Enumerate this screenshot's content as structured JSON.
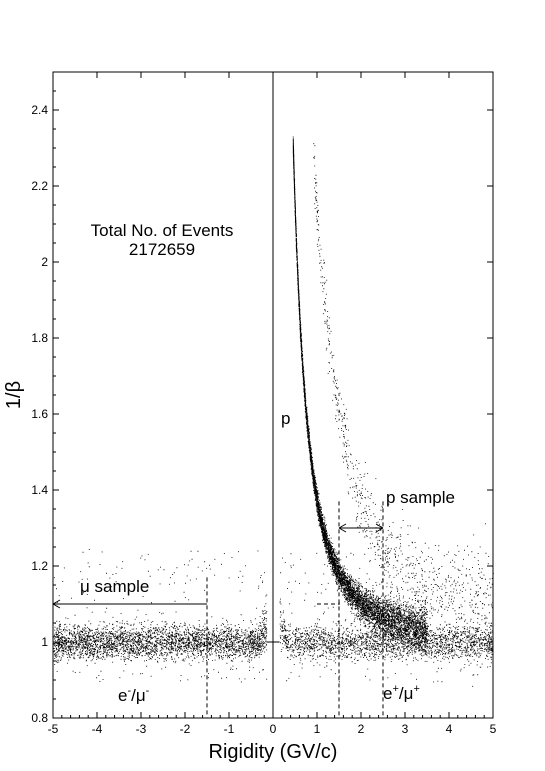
{
  "chart_data": {
    "type": "scatter",
    "title": "",
    "xlabel": "Rigidity (GV/c)",
    "ylabel": "1/β",
    "xlim": [
      -5,
      5
    ],
    "ylim": [
      0.8,
      2.5
    ],
    "xticks": [
      -5,
      -4,
      -3,
      -2,
      -1,
      0,
      1,
      2,
      3,
      4,
      5
    ],
    "yticks": [
      0.8,
      1,
      1.2,
      1.4,
      1.6,
      1.8,
      2,
      2.2,
      2.4
    ],
    "ytick_labels": [
      "0.8",
      "1",
      "1.2",
      "1.4",
      "1.6",
      "1.8",
      "2",
      "2.2",
      "2.4"
    ],
    "grid": false,
    "series": [
      {
        "name": "",
        "description_points": "dense band of events",
        "bands": [
          {
            "kind": "flat",
            "x_range": [
              -5,
              -0.15
            ],
            "y_center": 1.0,
            "y_halfwidth": 0.04
          },
          {
            "kind": "flat",
            "x_range": [
              0.15,
              5
            ],
            "y_center": 1.0,
            "y_halfwidth": 0.04
          },
          {
            "kind": "proton",
            "x_range": [
              0.45,
              3.5
            ],
            "mass": 0.938
          },
          {
            "kind": "deuteron",
            "x_range": [
              0.9,
              5
            ],
            "mass": 1.876
          }
        ]
      }
    ],
    "annotations": {
      "total_events_label": "Total No. of Events",
      "total_events_value": "2172659",
      "proton_label": "p",
      "p_sample_label": "p sample",
      "mu_sample_label": "μ sample",
      "neg_label_main": "e",
      "neg_label_sup": "-",
      "neg_label_sep": "/μ",
      "neg_label_sup2": "-",
      "pos_label_main": "e",
      "pos_label_sup": "+",
      "pos_label_sep": "/μ",
      "pos_label_sup2": "+"
    },
    "p_sample_range": [
      1.5,
      2.5
    ],
    "p_sample_arrow_y": 1.3,
    "mu_sample_range": [
      -5,
      -1.5
    ],
    "mu_sample_arrow_y": 1.1,
    "cut_lines_x": [
      -1.5,
      1.5,
      2.5
    ],
    "cut_dashed_y": 1.1
  }
}
